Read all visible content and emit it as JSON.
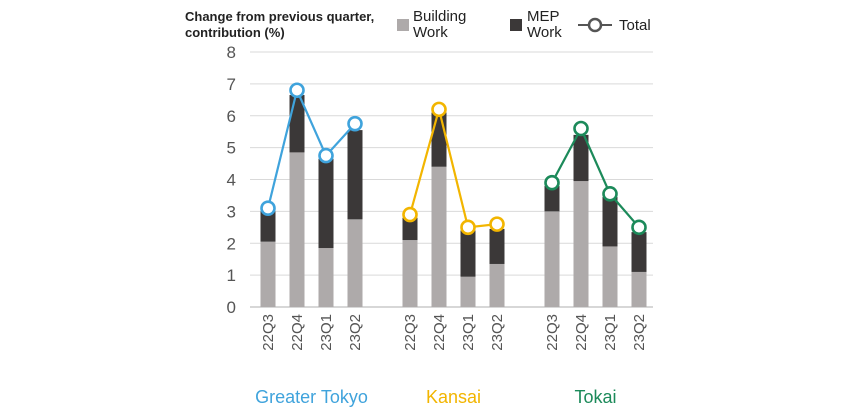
{
  "chart_data": {
    "type": "bar",
    "stacked": true,
    "ylabel_lines": [
      "Change from previous quarter,",
      "contribution (%)"
    ],
    "ylim": [
      0,
      8
    ],
    "yticks": [
      0,
      1,
      2,
      3,
      4,
      5,
      6,
      7,
      8
    ],
    "legend": {
      "building_lines": [
        "Building",
        "Work"
      ],
      "mep_lines": [
        "MEP",
        "Work"
      ],
      "total": "Total"
    },
    "colors": {
      "building": "#aeaaaa",
      "mep": "#3b3838",
      "grid": "#d9d9d9"
    },
    "groups": [
      {
        "name": "Greater Tokyo",
        "color": "#3fa3dc",
        "categories": [
          "22Q3",
          "22Q4",
          "23Q1",
          "23Q2"
        ],
        "building_work": [
          2.05,
          4.85,
          1.85,
          2.75
        ],
        "mep_work": [
          0.95,
          1.8,
          2.8,
          2.8
        ],
        "total": [
          3.1,
          6.8,
          4.75,
          5.75
        ]
      },
      {
        "name": "Kansai",
        "color": "#f2b500",
        "categories": [
          "22Q3",
          "22Q4",
          "23Q1",
          "23Q2"
        ],
        "building_work": [
          2.1,
          4.4,
          0.95,
          1.35
        ],
        "mep_work": [
          0.7,
          1.7,
          1.45,
          1.1
        ],
        "total": [
          2.9,
          6.2,
          2.5,
          2.6
        ]
      },
      {
        "name": "Tokai",
        "color": "#1c8a5a",
        "categories": [
          "22Q3",
          "22Q4",
          "23Q1",
          "23Q2"
        ],
        "building_work": [
          3.0,
          3.95,
          1.9,
          1.1
        ],
        "mep_work": [
          0.8,
          1.45,
          1.55,
          1.25
        ],
        "total": [
          3.9,
          5.6,
          3.55,
          2.5
        ]
      }
    ]
  }
}
